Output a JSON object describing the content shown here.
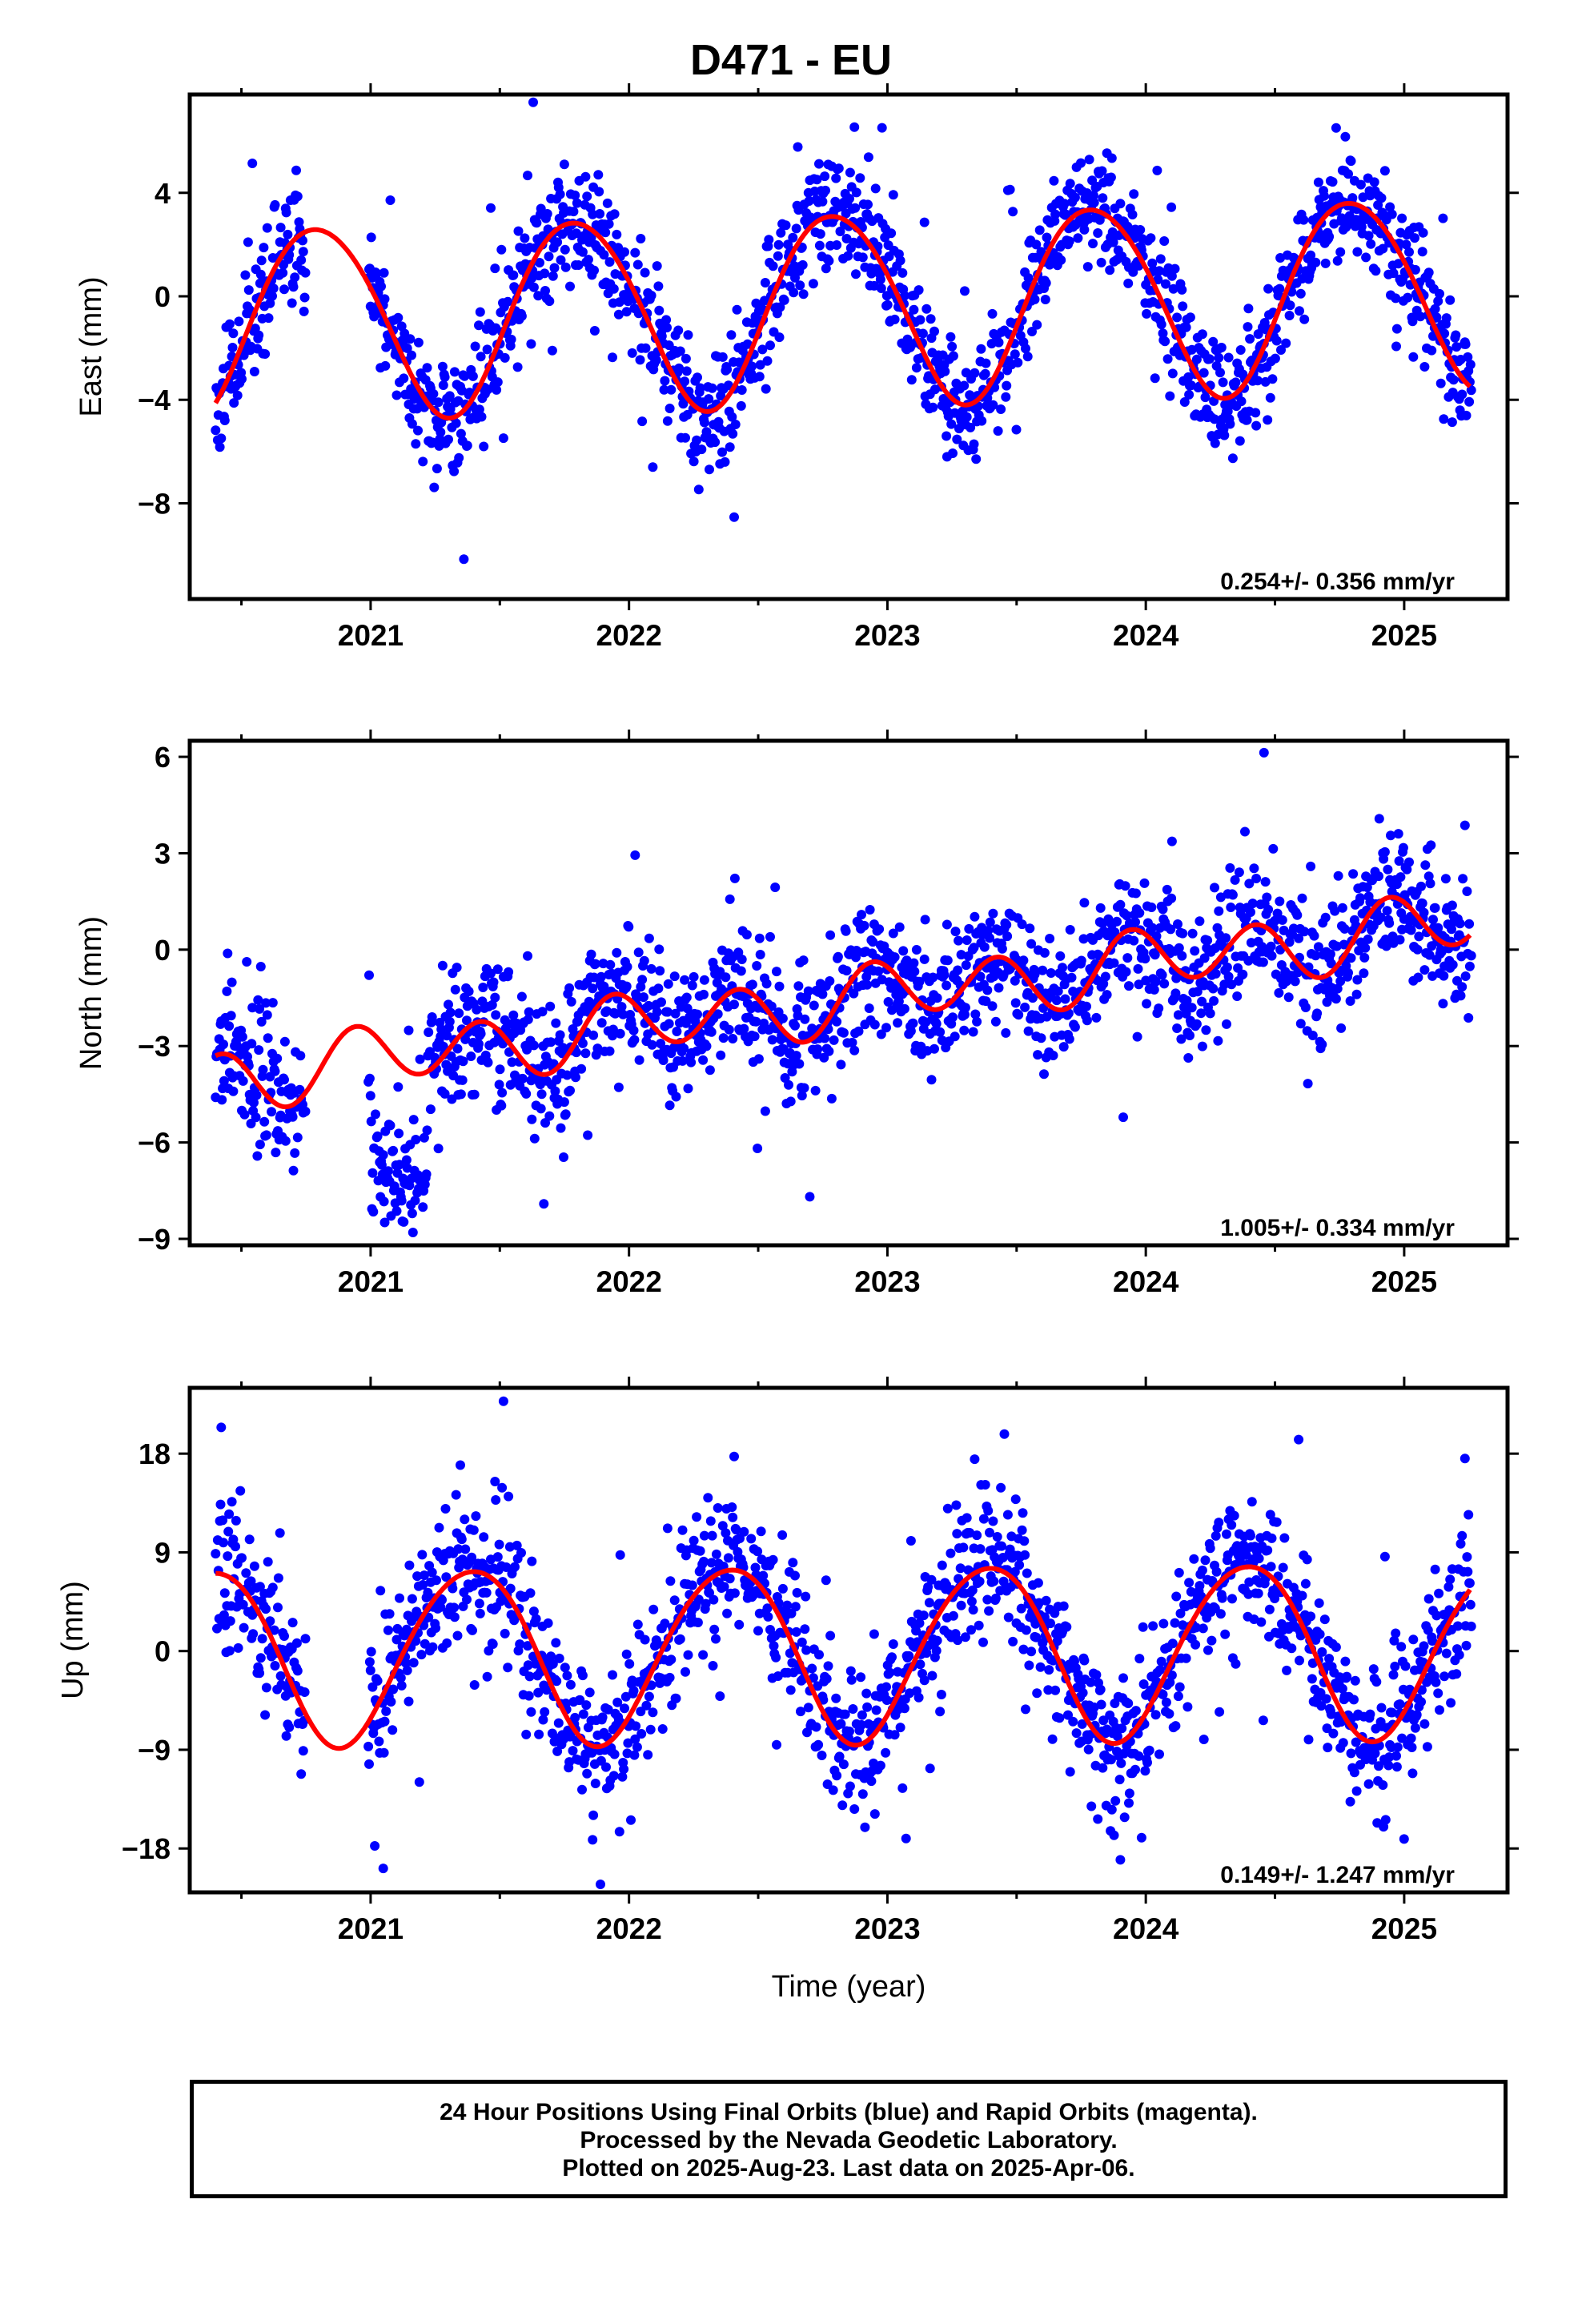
{
  "title": "D471 - EU",
  "colors": {
    "points": "#0000ff",
    "model": "#ff0000",
    "frame": "#000000"
  },
  "footer": {
    "line1": "24 Hour Positions Using Final Orbits (blue) and Rapid Orbits (magenta).",
    "line2": "Processed by the Nevada Geodetic Laboratory.",
    "line3": "Plotted on 2025-Aug-23. Last data on 2025-Apr-06."
  },
  "chart_data": [
    {
      "type": "scatter",
      "ylabel": "East (mm)",
      "xlabel": "",
      "x_ticks": [
        "2021",
        "2022",
        "2023",
        "2024",
        "2025"
      ],
      "y_ticks": [
        4,
        0,
        -4,
        -8
      ],
      "xlim": [
        2020.3,
        2025.4
      ],
      "ylim": [
        -11.7,
        7.8
      ],
      "rate_label": "0.254+/- 0.356 mm/yr",
      "grid": false,
      "series": [
        {
          "role": "daily positions",
          "marker": "dot",
          "trend": 0.254,
          "offset": -0.35,
          "amp1": 3.7,
          "phase1": 2.85,
          "amp2": 0.25,
          "phase2": 0.5,
          "noise": 1.1,
          "outlier_rate": 0.03,
          "seed": 11
        },
        {
          "role": "model",
          "line": true,
          "x_range": [
            2020.4,
            2025.26
          ]
        }
      ]
    },
    {
      "type": "scatter",
      "ylabel": "North (mm)",
      "xlabel": "",
      "x_ticks": [
        "2021",
        "2022",
        "2023",
        "2024",
        "2025"
      ],
      "y_ticks": [
        6,
        3,
        0,
        -3,
        -6,
        -9
      ],
      "xlim": [
        2020.3,
        2025.4
      ],
      "ylim": [
        -9.2,
        6.5
      ],
      "rate_label": "1.005+/- 0.334 mm/yr",
      "grid": false,
      "series": [
        {
          "role": "daily positions",
          "marker": "dot",
          "trend": 1.005,
          "offset": -1.4,
          "amp1": 0.3,
          "phase1": 1.0,
          "amp2": 0.9,
          "phase2": 2.4,
          "noise": 1.0,
          "outlier_rate": 0.02,
          "seed": 23,
          "jump": {
            "from": 2021.0,
            "to": 2021.22,
            "shift": -3.6
          }
        },
        {
          "role": "model",
          "line": true,
          "x_range": [
            2020.4,
            2025.26
          ]
        }
      ]
    },
    {
      "type": "scatter",
      "ylabel": "Up (mm)",
      "xlabel": "Time (year)",
      "x_ticks": [
        "2021",
        "2022",
        "2023",
        "2024",
        "2025"
      ],
      "y_ticks": [
        18,
        9,
        0,
        -9,
        -18
      ],
      "xlim": [
        2020.3,
        2025.4
      ],
      "ylim": [
        -22,
        24
      ],
      "rate_label": "0.149+/- 1.247 mm/yr",
      "grid": false,
      "series": [
        {
          "role": "daily positions",
          "marker": "dot",
          "trend": 0.149,
          "offset": 0.0,
          "amp1": 8.0,
          "phase1": -0.85,
          "amp2": 0.6,
          "phase2": 0.3,
          "noise": 3.3,
          "outlier_rate": 0.03,
          "seed": 37
        },
        {
          "role": "model",
          "line": true,
          "x_range": [
            2020.4,
            2025.26
          ]
        }
      ]
    }
  ]
}
